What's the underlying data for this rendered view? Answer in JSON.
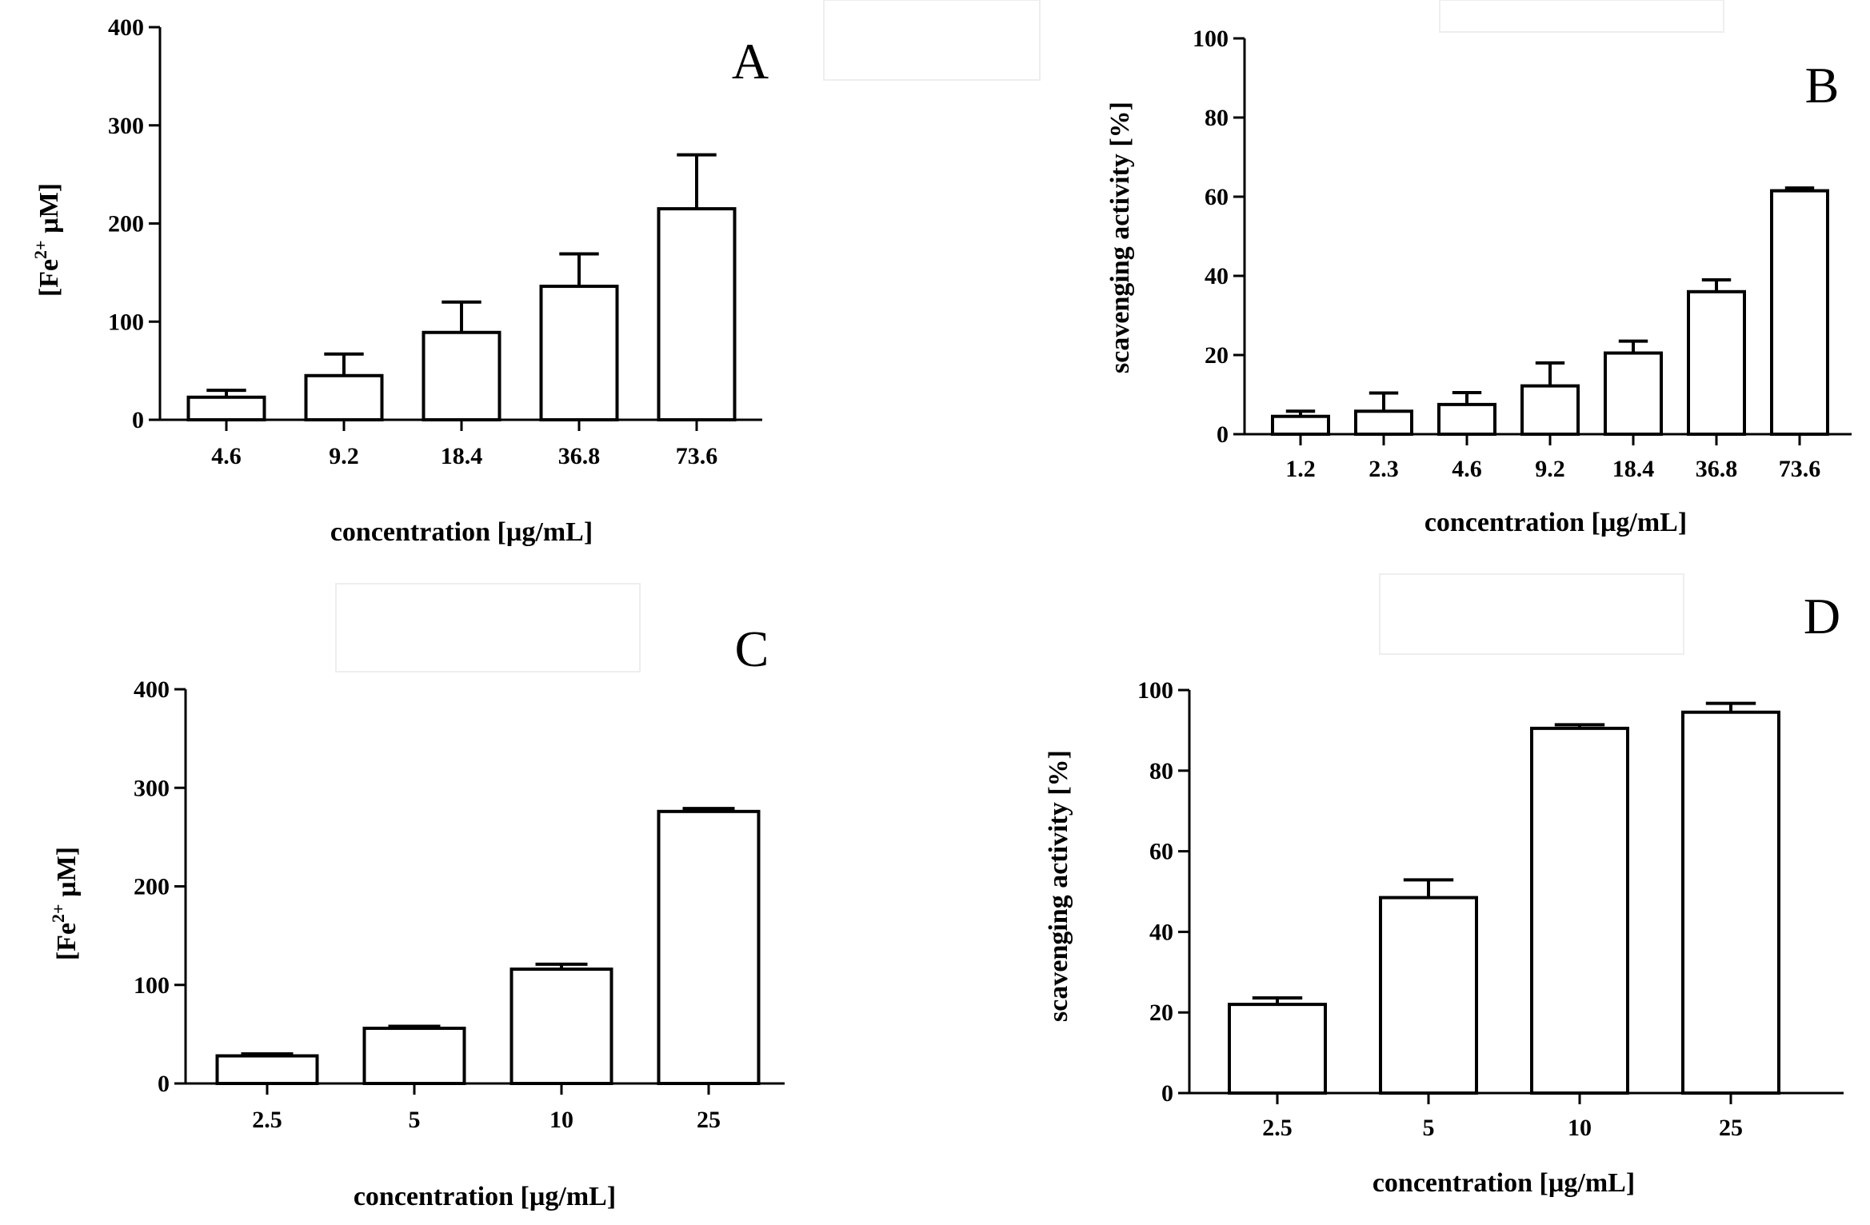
{
  "figure": {
    "type": "bar-chart-grid",
    "colors": {
      "bar_fill": "#ffffff",
      "bar_stroke": "#000000",
      "axis": "#000000",
      "frame": "#eeeeee"
    }
  },
  "chart_data": [
    {
      "id": "A",
      "panel_label": "A",
      "type": "bar",
      "categories": [
        "4.6",
        "9.2",
        "18.4",
        "36.8",
        "73.6"
      ],
      "values": [
        23,
        45,
        89,
        136,
        215
      ],
      "errors": [
        7,
        22,
        31,
        33,
        55
      ],
      "ylim": [
        0,
        400
      ],
      "yticks": [
        "0",
        "100",
        "200",
        "300",
        "400"
      ],
      "ylabel_pre": "[Fe",
      "ylabel_sup": "2+",
      "ylabel_post": " µM]",
      "xlabel": "concentration [µg/mL]"
    },
    {
      "id": "B",
      "panel_label": "B",
      "type": "bar",
      "categories": [
        "1.2",
        "2.3",
        "4.6",
        "9.2",
        "18.4",
        "36.8",
        "73.6"
      ],
      "values": [
        4.5,
        5.8,
        7.5,
        12.2,
        20.5,
        36,
        61.5
      ],
      "errors": [
        1.3,
        4.6,
        3.0,
        5.8,
        3.0,
        3.0,
        0.7
      ],
      "ylim": [
        0,
        100
      ],
      "yticks": [
        "0",
        "20",
        "40",
        "60",
        "80",
        "100"
      ],
      "ylabel": "scavenging activity [%]",
      "xlabel": "concentration [µg/mL]"
    },
    {
      "id": "C",
      "panel_label": "C",
      "type": "bar",
      "categories": [
        "2.5",
        "5",
        "10",
        "25"
      ],
      "values": [
        28,
        56,
        116,
        276
      ],
      "errors": [
        2,
        2,
        5,
        3
      ],
      "ylim": [
        0,
        400
      ],
      "yticks": [
        "0",
        "100",
        "200",
        "300",
        "400"
      ],
      "ylabel_pre": "[Fe",
      "ylabel_sup": "2+",
      "ylabel_post": " µM]",
      "xlabel": "concentration [µg/mL]"
    },
    {
      "id": "D",
      "panel_label": "D",
      "type": "bar",
      "categories": [
        "2.5",
        "5",
        "10",
        "25"
      ],
      "values": [
        22,
        48.5,
        90.5,
        94.5
      ],
      "errors": [
        1.6,
        4.4,
        0.9,
        2.2
      ],
      "ylim": [
        0,
        100
      ],
      "yticks": [
        "0",
        "20",
        "40",
        "60",
        "80",
        "100"
      ],
      "ylabel": "scavenging activity [%]",
      "xlabel": "concentration [µg/mL]"
    }
  ]
}
